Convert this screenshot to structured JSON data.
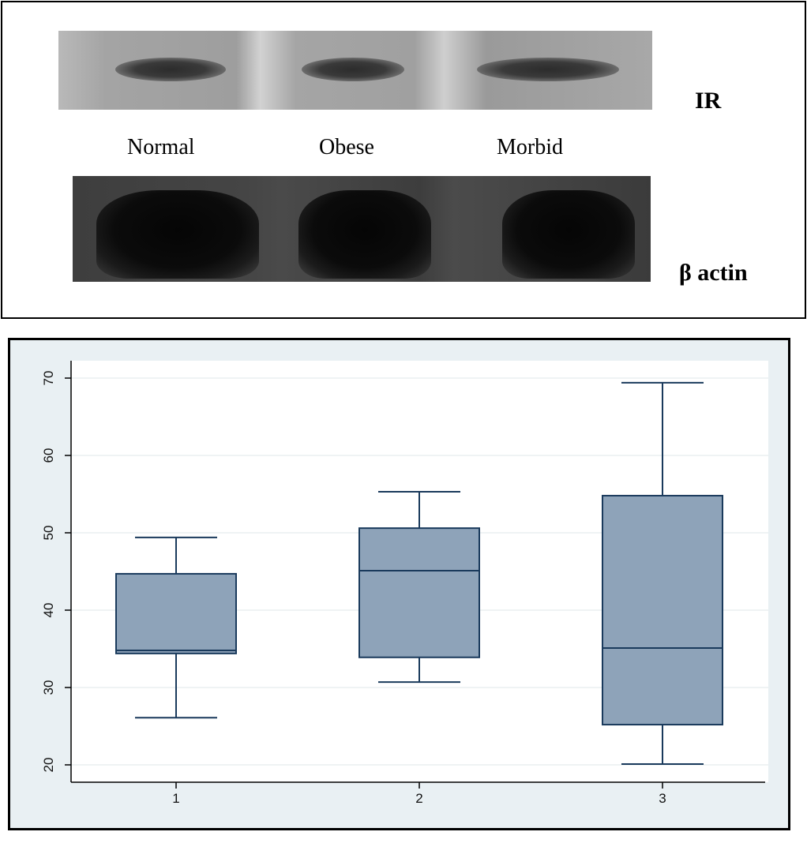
{
  "blot": {
    "lanes": [
      "Normal",
      "Obese",
      "Morbid"
    ],
    "proteins": [
      {
        "label": "IR"
      },
      {
        "label": "β actin"
      }
    ]
  },
  "chart_data": {
    "type": "box",
    "title": "",
    "xlabel": "",
    "ylabel": "",
    "categories": [
      "1",
      "2",
      "3"
    ],
    "ylim": [
      20,
      70
    ],
    "yticks": [
      20,
      30,
      40,
      50,
      60,
      70
    ],
    "grid": true,
    "boxes": [
      {
        "category": "1",
        "whisker_low": 26.1,
        "q1": 34.4,
        "median": 34.8,
        "q3": 44.7,
        "whisker_high": 49.4
      },
      {
        "category": "2",
        "whisker_low": 30.7,
        "q1": 33.9,
        "median": 45.1,
        "q3": 50.6,
        "whisker_high": 55.3
      },
      {
        "category": "3",
        "whisker_low": 20.1,
        "q1": 25.2,
        "median": 35.1,
        "q3": 54.8,
        "whisker_high": 69.4
      }
    ],
    "colors": {
      "box_fill": "#8ea3b9",
      "box_line": "#1a3a5c",
      "plot_bg": "#ffffff",
      "outer_bg": "#e9f0f3",
      "grid": "#eaeff1"
    }
  }
}
